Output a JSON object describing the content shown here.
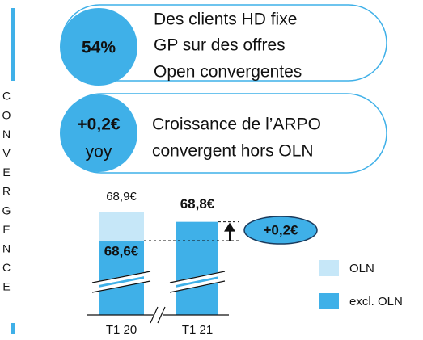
{
  "side_label": [
    "C",
    "O",
    "N",
    "V",
    "E",
    "R",
    "G",
    "E",
    "N",
    "C",
    "E"
  ],
  "kpis": [
    {
      "value": "54%",
      "lines": [
        "Des clients HD fixe",
        "GP sur des offres",
        "Open convergentes"
      ]
    },
    {
      "value": "+0,2€",
      "sub": "yoy",
      "lines": [
        "Croissance de l’ARPO",
        "convergent hors OLN"
      ]
    }
  ],
  "chart_data": {
    "type": "bar",
    "stacked": true,
    "categories": [
      "T1 20",
      "T1 21"
    ],
    "series": [
      {
        "name": "excl. OLN",
        "color": "#3fb0e8",
        "values": [
          68.6,
          68.8
        ],
        "value_labels": [
          "68,6€",
          "68,8€"
        ]
      },
      {
        "name": "OLN",
        "color": "#c6e7f8",
        "values": [
          0.3,
          null
        ]
      }
    ],
    "annotations": [
      "68,9€",
      "+0,2€"
    ]
  }
}
